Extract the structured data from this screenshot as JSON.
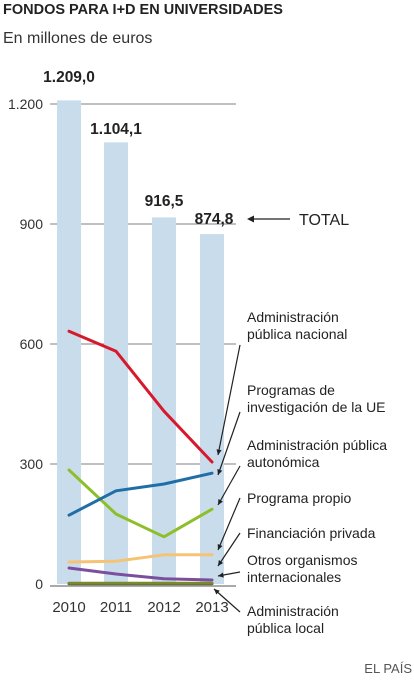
{
  "chart_data": {
    "type": "bar",
    "title": "FONDOS PARA I+D EN UNIVERSIDADES",
    "subtitle": "En millones de euros",
    "source": "EL PAÍS",
    "categories": [
      "2010",
      "2011",
      "2012",
      "2013"
    ],
    "ylim": [
      0,
      1300
    ],
    "yticks": [
      0,
      300,
      600,
      900,
      1200
    ],
    "ytick_labels": [
      "0",
      "300",
      "600",
      "900",
      "1.200"
    ],
    "grid": true,
    "total": {
      "name": "TOTAL",
      "values": [
        1209.0,
        1104.1,
        916.5,
        874.8
      ],
      "labels": [
        "1.209,0",
        "1.104,1",
        "916,5",
        "874,8"
      ],
      "color": "#c9dcec"
    },
    "series": [
      {
        "name": "Administración pública nacional",
        "label_lines": [
          "Administración",
          "pública nacional"
        ],
        "color": "#d7192d",
        "values": [
          632,
          582,
          432,
          305
        ]
      },
      {
        "name": "Programas de investigación de la UE",
        "label_lines": [
          "Programas de",
          "investigación de la UE"
        ],
        "color": "#1f6fa6",
        "values": [
          172,
          233,
          250,
          277
        ]
      },
      {
        "name": "Administración pública autonómica",
        "label_lines": [
          "Administración pública",
          "autonómica"
        ],
        "color": "#8cbf2a",
        "values": [
          285,
          175,
          118,
          187
        ]
      },
      {
        "name": "Programa propio",
        "label_lines": [
          "Programa propio"
        ],
        "color": "#f6c374",
        "values": [
          55,
          57,
          73,
          73
        ]
      },
      {
        "name": "Financiación privada",
        "label_lines": [
          "Financiación privada"
        ],
        "color": "#7b4f9e",
        "values": [
          40,
          25,
          13,
          10
        ]
      },
      {
        "name": "Otros organismos internacionales",
        "label_lines": [
          "Otros organismos",
          "internacionales"
        ],
        "color": "#7a8a2a",
        "values": [
          2,
          2,
          2,
          2
        ]
      },
      {
        "name": "Administración pública local",
        "label_lines": [
          "Administración",
          "pública local"
        ],
        "color": "#333333",
        "values": [
          1,
          1,
          1,
          1
        ]
      }
    ]
  }
}
